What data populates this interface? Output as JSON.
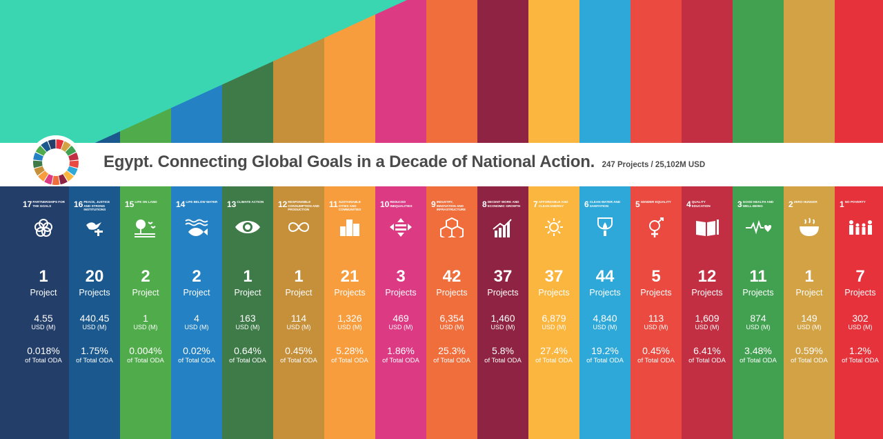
{
  "header": {
    "title": "Egypt. Connecting Global Goals in a Decade of National Action.",
    "subtitle": "247 Projects / 25,102M USD"
  },
  "colors": {
    "teal": "#3ad5b1",
    "banner": "#ffffff",
    "title_text": "#4a4a4a"
  },
  "chart_data": {
    "type": "table",
    "columns": [
      {
        "goal_number": "17",
        "goal_title": "PARTNERSHIPS FOR THE GOALS",
        "icon": "rings-icon",
        "color": "#243e6a",
        "projects": 1,
        "projects_text": "1",
        "projects_label": "Project",
        "usd": 4.55,
        "usd_text": "4.55",
        "usd_unit": "USD (M)",
        "percent": 0.018,
        "percent_text": "0.018%",
        "percent_label": "of Total ODA"
      },
      {
        "goal_number": "16",
        "goal_title": "PEACE, JUSTICE AND STRONG INSTITUTIONS",
        "icon": "dove-gavel-icon",
        "color": "#1a588e",
        "projects": 20,
        "projects_text": "20",
        "projects_label": "Projects",
        "usd": 440.45,
        "usd_text": "440.45",
        "usd_unit": "USD (M)",
        "percent": 1.75,
        "percent_text": "1.75%",
        "percent_label": "of Total ODA"
      },
      {
        "goal_number": "15",
        "goal_title": "LIFE ON LAND",
        "icon": "tree-birds-icon",
        "color": "#50ab4a",
        "projects": 2,
        "projects_text": "2",
        "projects_label": "Project",
        "usd": 1,
        "usd_text": "1",
        "usd_unit": "USD (M)",
        "percent": 0.004,
        "percent_text": "0.004%",
        "percent_label": "of Total ODA"
      },
      {
        "goal_number": "14",
        "goal_title": "LIFE BELOW WATER",
        "icon": "fish-icon",
        "color": "#2481c4",
        "projects": 2,
        "projects_text": "2",
        "projects_label": "Project",
        "usd": 4,
        "usd_text": "4",
        "usd_unit": "USD (M)",
        "percent": 0.02,
        "percent_text": "0.02%",
        "percent_label": "of Total ODA"
      },
      {
        "goal_number": "13",
        "goal_title": "CLIMATE ACTION",
        "icon": "eye-globe-icon",
        "color": "#3e7b48",
        "projects": 1,
        "projects_text": "1",
        "projects_label": "Project",
        "usd": 163,
        "usd_text": "163",
        "usd_unit": "USD (M)",
        "percent": 0.64,
        "percent_text": "0.64%",
        "percent_label": "of Total ODA"
      },
      {
        "goal_number": "12",
        "goal_title": "RESPONSIBLE CONSUMPTION AND PRODUCTION",
        "icon": "infinity-icon",
        "color": "#c68f3a",
        "projects": 1,
        "projects_text": "1",
        "projects_label": "Project",
        "usd": 114,
        "usd_text": "114",
        "usd_unit": "USD (M)",
        "percent": 0.45,
        "percent_text": "0.45%",
        "percent_label": "of Total ODA"
      },
      {
        "goal_number": "11",
        "goal_title": "SUSTAINABLE CITIES AND COMMUNITIES",
        "icon": "buildings-icon",
        "color": "#f79d3d",
        "projects": 21,
        "projects_text": "21",
        "projects_label": "Projects",
        "usd": 1326,
        "usd_text": "1,326",
        "usd_unit": "USD (M)",
        "percent": 5.28,
        "percent_text": "5.28%",
        "percent_label": "of Total ODA"
      },
      {
        "goal_number": "10",
        "goal_title": "REDUCED INEQUALITIES",
        "icon": "equals-arrows-icon",
        "color": "#dd3a84",
        "projects": 3,
        "projects_text": "3",
        "projects_label": "Projects",
        "usd": 469,
        "usd_text": "469",
        "usd_unit": "USD (M)",
        "percent": 1.86,
        "percent_text": "1.86%",
        "percent_label": "of Total ODA"
      },
      {
        "goal_number": "9",
        "goal_title": "INDUSTRY, INNOVATION AND INFRASTRUCTURE",
        "icon": "cubes-icon",
        "color": "#f06e3c",
        "projects": 42,
        "projects_text": "42",
        "projects_label": "Projects",
        "usd": 6354,
        "usd_text": "6,354",
        "usd_unit": "USD (M)",
        "percent": 25.3,
        "percent_text": "25.3%",
        "percent_label": "of Total ODA"
      },
      {
        "goal_number": "8",
        "goal_title": "DECENT WORK AND ECONOMIC GROWTH",
        "icon": "growth-chart-icon",
        "color": "#8f2343",
        "projects": 37,
        "projects_text": "37",
        "projects_label": "Projects",
        "usd": 1460,
        "usd_text": "1,460",
        "usd_unit": "USD (M)",
        "percent": 5.8,
        "percent_text": "5.8%",
        "percent_label": "of Total ODA"
      },
      {
        "goal_number": "7",
        "goal_title": "AFFORDABLE AND CLEAN ENERGY",
        "icon": "sun-power-icon",
        "color": "#fbb63f",
        "projects": 37,
        "projects_text": "37",
        "projects_label": "Projects",
        "usd": 6879,
        "usd_text": "6,879",
        "usd_unit": "USD (M)",
        "percent": 27.4,
        "percent_text": "27.4%",
        "percent_label": "of Total ODA"
      },
      {
        "goal_number": "6",
        "goal_title": "CLEAN WATER AND SANITATION",
        "icon": "water-drop-icon",
        "color": "#2ea8d8",
        "projects": 44,
        "projects_text": "44",
        "projects_label": "Projects",
        "usd": 4840,
        "usd_text": "4,840",
        "usd_unit": "USD (M)",
        "percent": 19.2,
        "percent_text": "19.2%",
        "percent_label": "of Total ODA"
      },
      {
        "goal_number": "5",
        "goal_title": "GENDER EQUALITY",
        "icon": "gender-icon",
        "color": "#ea4a3f",
        "projects": 5,
        "projects_text": "5",
        "projects_label": "Projects",
        "usd": 113,
        "usd_text": "113",
        "usd_unit": "USD (M)",
        "percent": 0.45,
        "percent_text": "0.45%",
        "percent_label": "of Total ODA"
      },
      {
        "goal_number": "4",
        "goal_title": "QUALITY EDUCATION",
        "icon": "book-pencil-icon",
        "color": "#c22e42",
        "projects": 12,
        "projects_text": "12",
        "projects_label": "Projects",
        "usd": 1609,
        "usd_text": "1,609",
        "usd_unit": "USD (M)",
        "percent": 6.41,
        "percent_text": "6.41%",
        "percent_label": "of Total ODA"
      },
      {
        "goal_number": "3",
        "goal_title": "GOOD HEALTH AND WELL-BEING",
        "icon": "heartbeat-icon",
        "color": "#41a151",
        "projects": 11,
        "projects_text": "11",
        "projects_label": "Projects",
        "usd": 874,
        "usd_text": "874",
        "usd_unit": "USD (M)",
        "percent": 3.48,
        "percent_text": "3.48%",
        "percent_label": "of Total ODA"
      },
      {
        "goal_number": "2",
        "goal_title": "ZERO HUNGER",
        "icon": "food-bowl-icon",
        "color": "#d2a244",
        "projects": 1,
        "projects_text": "1",
        "projects_label": "Project",
        "usd": 149,
        "usd_text": "149",
        "usd_unit": "USD (M)",
        "percent": 0.59,
        "percent_text": "0.59%",
        "percent_label": "of Total ODA"
      },
      {
        "goal_number": "1",
        "goal_title": "NO POVERTY",
        "icon": "family-icon",
        "color": "#e5323b",
        "projects": 7,
        "projects_text": "7",
        "projects_label": "Projects",
        "usd": 302,
        "usd_text": "302",
        "usd_unit": "USD (M)",
        "percent": 1.2,
        "percent_text": "1.2%",
        "percent_label": "of Total ODA"
      }
    ]
  }
}
